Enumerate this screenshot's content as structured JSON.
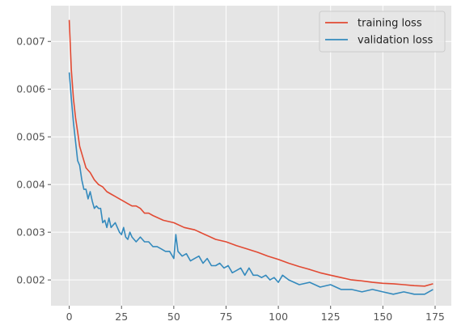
{
  "chart_data": {
    "type": "line",
    "title": "",
    "xlabel": "",
    "ylabel": "",
    "xlim": [
      -8.75,
      182.75
    ],
    "ylim": [
      0.00146,
      0.00775
    ],
    "grid": true,
    "style": "ggplot",
    "legend_position": "top-right",
    "x_ticks": [
      0,
      25,
      50,
      75,
      100,
      125,
      150,
      175
    ],
    "x_tick_labels": [
      "0",
      "25",
      "50",
      "75",
      "100",
      "125",
      "150",
      "175"
    ],
    "y_ticks": [
      0.002,
      0.003,
      0.004,
      0.005,
      0.006,
      0.007
    ],
    "y_tick_labels": [
      "0.002",
      "0.003",
      "0.004",
      "0.005",
      "0.006",
      "0.007"
    ],
    "series": [
      {
        "name": "training loss",
        "color": "#E24A33",
        "x": [
          0,
          1,
          2,
          3,
          4,
          5,
          6,
          7,
          8,
          9,
          10,
          12,
          14,
          16,
          18,
          20,
          22,
          24,
          26,
          28,
          30,
          32,
          34,
          36,
          38,
          40,
          45,
          50,
          55,
          60,
          65,
          70,
          75,
          80,
          85,
          90,
          95,
          100,
          105,
          110,
          115,
          120,
          125,
          130,
          135,
          140,
          145,
          150,
          155,
          160,
          165,
          170,
          174
        ],
        "y": [
          0.00745,
          0.0064,
          0.0058,
          0.0054,
          0.0051,
          0.0048,
          0.00465,
          0.0045,
          0.00435,
          0.0043,
          0.00425,
          0.0041,
          0.004,
          0.00395,
          0.00385,
          0.0038,
          0.00375,
          0.0037,
          0.00365,
          0.0036,
          0.00355,
          0.00355,
          0.0035,
          0.0034,
          0.0034,
          0.00335,
          0.00325,
          0.0032,
          0.0031,
          0.00305,
          0.00295,
          0.00285,
          0.0028,
          0.00272,
          0.00265,
          0.00258,
          0.0025,
          0.00243,
          0.00235,
          0.00228,
          0.00222,
          0.00215,
          0.0021,
          0.00205,
          0.002,
          0.00198,
          0.00195,
          0.00193,
          0.00192,
          0.0019,
          0.00188,
          0.00187,
          0.00192
        ]
      },
      {
        "name": "validation loss",
        "color": "#348ABD",
        "x": [
          0,
          1,
          2,
          3,
          4,
          5,
          6,
          7,
          8,
          9,
          10,
          11,
          12,
          13,
          14,
          15,
          16,
          17,
          18,
          19,
          20,
          21,
          22,
          23,
          24,
          25,
          26,
          27,
          28,
          29,
          30,
          32,
          34,
          36,
          38,
          40,
          42,
          44,
          46,
          48,
          50,
          51,
          52,
          54,
          56,
          58,
          60,
          62,
          64,
          66,
          68,
          70,
          72,
          74,
          76,
          78,
          80,
          82,
          84,
          86,
          88,
          90,
          92,
          94,
          96,
          98,
          100,
          102,
          105,
          110,
          115,
          120,
          125,
          130,
          135,
          140,
          145,
          150,
          155,
          160,
          165,
          170,
          174
        ],
        "y": [
          0.00635,
          0.0058,
          0.0053,
          0.0049,
          0.0045,
          0.0044,
          0.0041,
          0.0039,
          0.0039,
          0.0037,
          0.00385,
          0.00365,
          0.0035,
          0.00355,
          0.0035,
          0.0035,
          0.0032,
          0.00325,
          0.0031,
          0.0033,
          0.0031,
          0.00315,
          0.0032,
          0.0031,
          0.003,
          0.00295,
          0.0031,
          0.0029,
          0.00285,
          0.003,
          0.0029,
          0.0028,
          0.0029,
          0.0028,
          0.0028,
          0.0027,
          0.0027,
          0.00265,
          0.0026,
          0.0026,
          0.00245,
          0.00295,
          0.0026,
          0.0025,
          0.00255,
          0.0024,
          0.00245,
          0.0025,
          0.00235,
          0.00245,
          0.0023,
          0.0023,
          0.00235,
          0.00225,
          0.0023,
          0.00215,
          0.0022,
          0.00225,
          0.0021,
          0.00225,
          0.0021,
          0.0021,
          0.00205,
          0.0021,
          0.002,
          0.00205,
          0.00195,
          0.0021,
          0.002,
          0.0019,
          0.00195,
          0.00185,
          0.0019,
          0.0018,
          0.0018,
          0.00175,
          0.0018,
          0.00175,
          0.0017,
          0.00175,
          0.0017,
          0.0017,
          0.0018
        ]
      }
    ]
  }
}
